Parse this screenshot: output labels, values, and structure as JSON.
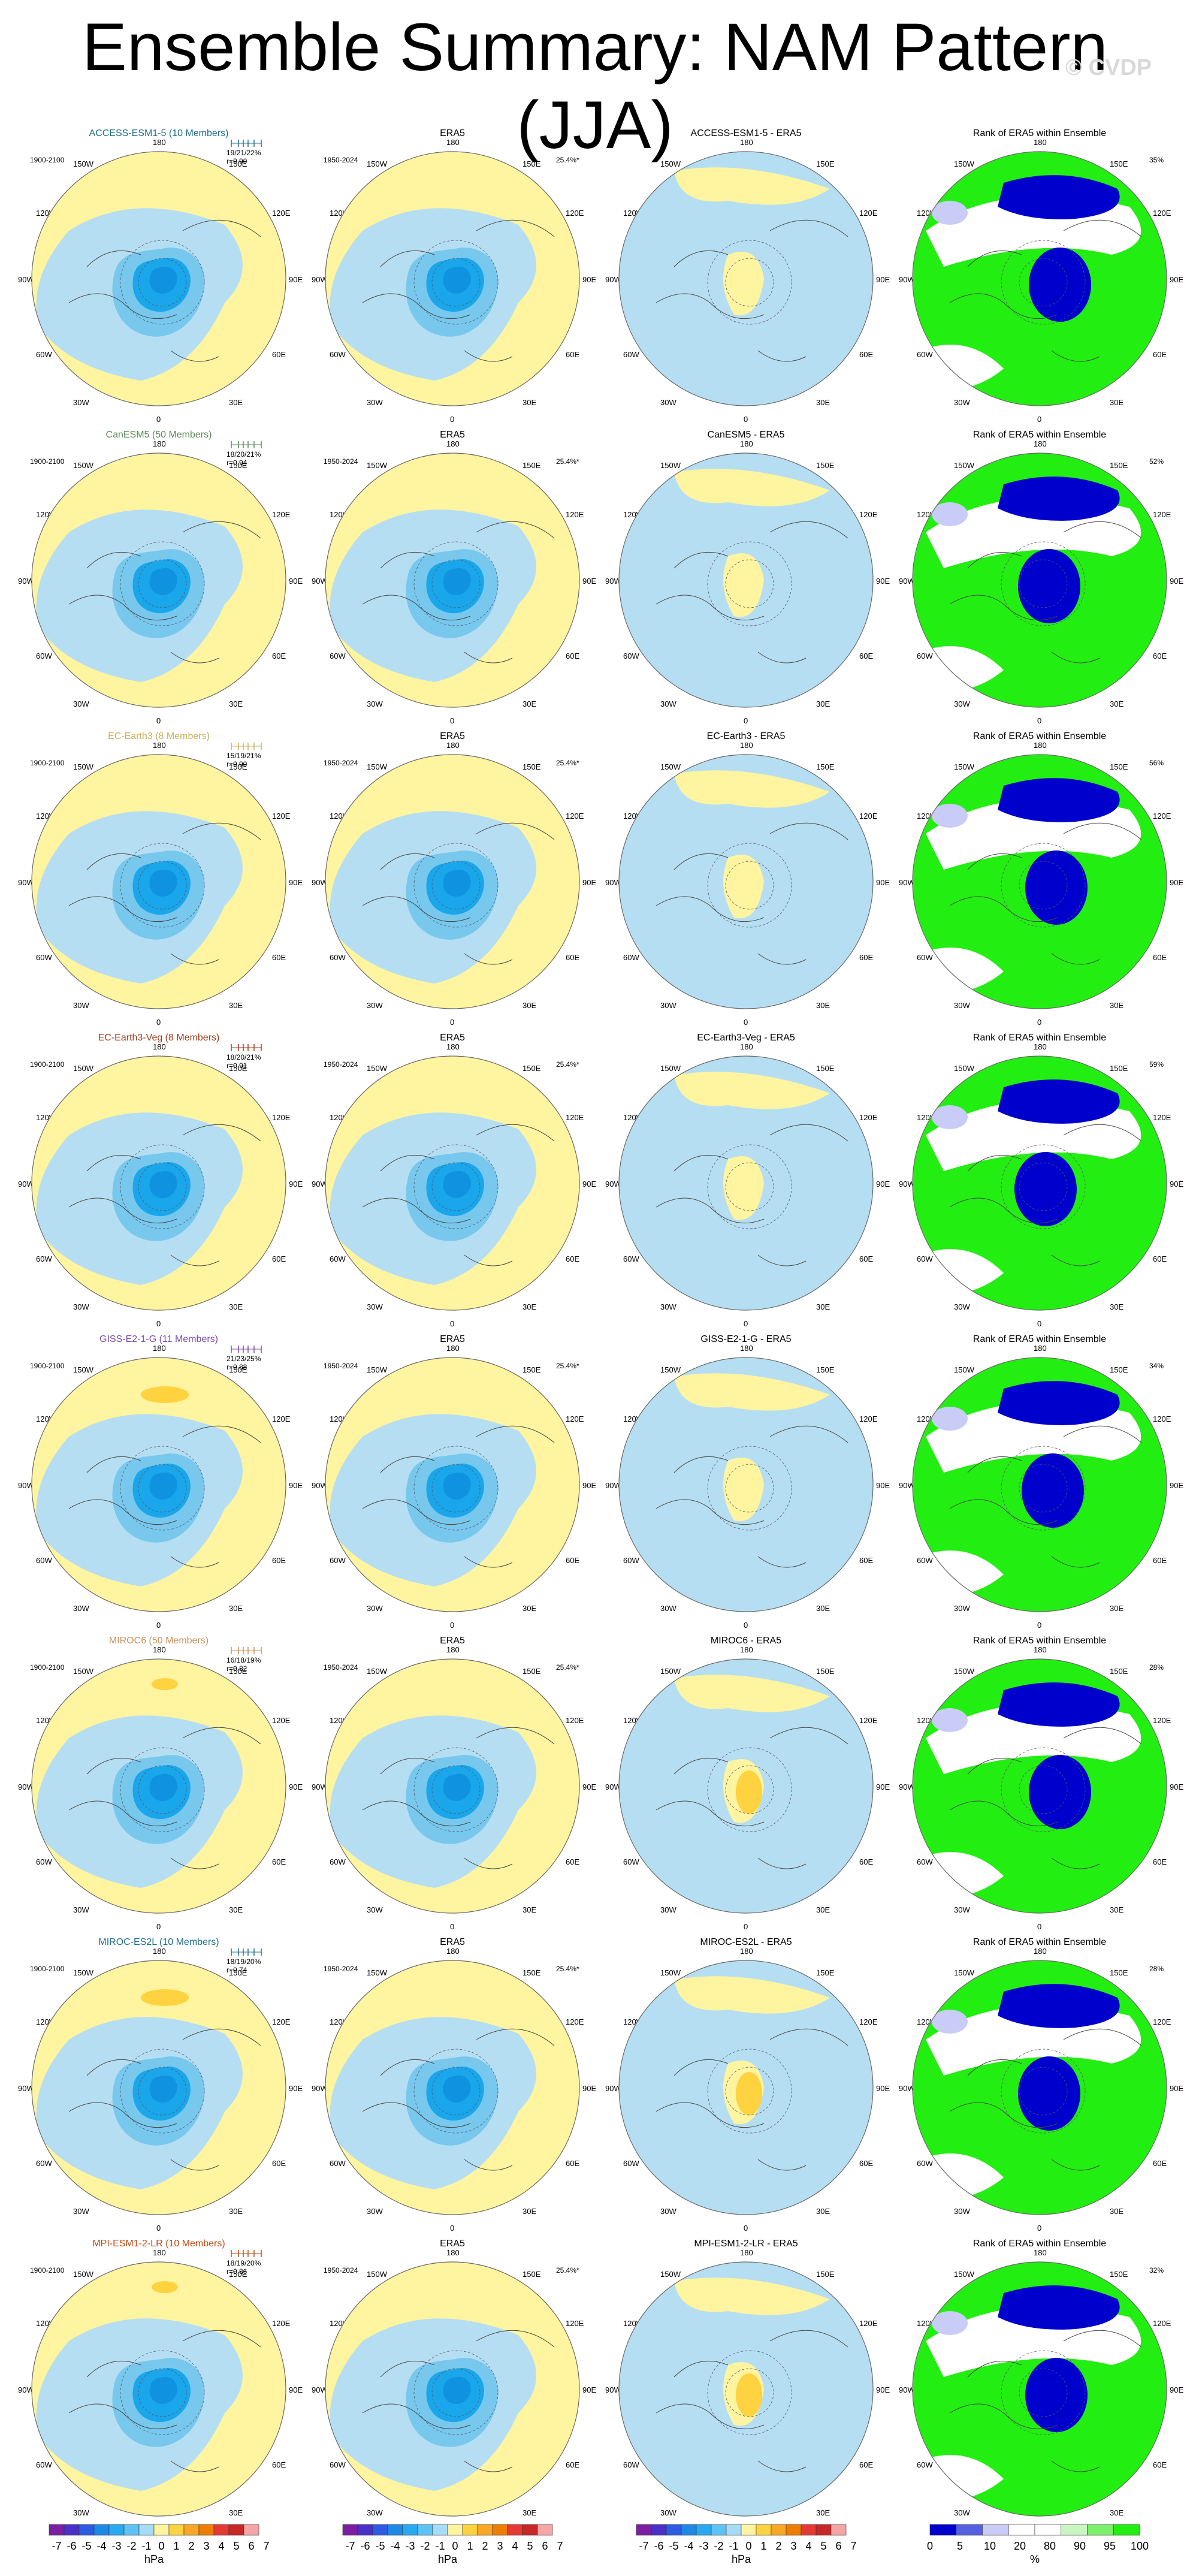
{
  "title": "Ensemble Summary: NAM Pattern (JJA)",
  "watermark": "© CVDP",
  "colors": {
    "pos_light": "#fff4a0",
    "neg_light": "#b6def2",
    "neg_mid": "#78c8ee",
    "neg_dark": "#1aa6ea",
    "pos_mid": "#ffd23f",
    "rank_green": "#22ee11",
    "rank_blue": "#0000cc",
    "rank_lightblue": "#c8ccf6",
    "title_access": "#1f6f8b",
    "title_canesm": "#5a8a5a",
    "title_ecearth": "#c8b15a",
    "title_ecveg": "#a23b1a",
    "title_giss": "#7a4ab0",
    "title_miroc6": "#c8905a",
    "title_mirocesl": "#1f6f8b",
    "title_mpi": "#c04a10"
  },
  "lon_labels": {
    "top": "180",
    "bottom": "0",
    "left": "90W",
    "right": "90E",
    "ul1": "150W",
    "ul2": "120W",
    "ur1": "150E",
    "ur2": "120E",
    "ll1": "60W",
    "ll2": "30W",
    "lr1": "60E",
    "lr2": "30E"
  },
  "rows": [
    {
      "model": "ACCESS-ESM1-5 (10 Members)",
      "color_key": "title_access",
      "period": "1900-2100",
      "stats": "19/21/22%",
      "corr": "r=0.90",
      "obs_title": "ERA5",
      "obs_period": "1950-2024",
      "obs_pct": "25.4%*",
      "diff_title": "ACCESS-ESM1-5 - ERA5",
      "rank_title": "Rank of ERA5 within Ensemble",
      "rank_pct": "35%"
    },
    {
      "model": "CanESM5 (50 Members)",
      "color_key": "title_canesm",
      "period": "1900-2100",
      "stats": "18/20/21%",
      "corr": "r=0.94",
      "obs_title": "ERA5",
      "obs_period": "1950-2024",
      "obs_pct": "25.4%*",
      "diff_title": "CanESM5 - ERA5",
      "rank_title": "Rank of ERA5 within Ensemble",
      "rank_pct": "52%"
    },
    {
      "model": "EC-Earth3 (8 Members)",
      "color_key": "title_ecearth",
      "period": "1900-2100",
      "stats": "15/19/21%",
      "corr": "r=0.90",
      "obs_title": "ERA5",
      "obs_period": "1950-2024",
      "obs_pct": "25.4%*",
      "diff_title": "EC-Earth3 - ERA5",
      "rank_title": "Rank of ERA5 within Ensemble",
      "rank_pct": "56%"
    },
    {
      "model": "EC-Earth3-Veg (8 Members)",
      "color_key": "title_ecveg",
      "period": "1900-2100",
      "stats": "18/20/21%",
      "corr": "r=0.91",
      "obs_title": "ERA5",
      "obs_period": "1950-2024",
      "obs_pct": "25.4%*",
      "diff_title": "EC-Earth3-Veg - ERA5",
      "rank_title": "Rank of ERA5 within Ensemble",
      "rank_pct": "59%"
    },
    {
      "model": "GISS-E2-1-G (11 Members)",
      "color_key": "title_giss",
      "period": "1900-2100",
      "stats": "21/23/25%",
      "corr": "r=0.88",
      "obs_title": "ERA5",
      "obs_period": "1950-2024",
      "obs_pct": "25.4%*",
      "diff_title": "GISS-E2-1-G - ERA5",
      "rank_title": "Rank of ERA5 within Ensemble",
      "rank_pct": "34%"
    },
    {
      "model": "MIROC6 (50 Members)",
      "color_key": "title_miroc6",
      "period": "1900-2100",
      "stats": "16/18/19%",
      "corr": "r=0.82",
      "obs_title": "ERA5",
      "obs_period": "1950-2024",
      "obs_pct": "25.4%*",
      "diff_title": "MIROC6 - ERA5",
      "rank_title": "Rank of ERA5 within Ensemble",
      "rank_pct": "28%"
    },
    {
      "model": "MIROC-ES2L (10 Members)",
      "color_key": "title_mirocesl",
      "period": "1900-2100",
      "stats": "18/19/20%",
      "corr": "r=0.74",
      "obs_title": "ERA5",
      "obs_period": "1950-2024",
      "obs_pct": "25.4%*",
      "diff_title": "MIROC-ES2L - ERA5",
      "rank_title": "Rank of ERA5 within Ensemble",
      "rank_pct": "28%"
    },
    {
      "model": "MPI-ESM1-2-LR (10 Members)",
      "color_key": "title_mpi",
      "period": "1900-2100",
      "stats": "18/19/20%",
      "corr": "r=0.86",
      "obs_title": "ERA5",
      "obs_period": "1950-2024",
      "obs_pct": "25.4%*",
      "diff_title": "MPI-ESM1-2-LR - ERA5",
      "rank_title": "Rank of ERA5 within Ensemble",
      "rank_pct": "32%"
    }
  ],
  "colorbars": {
    "hpa_ticks": [
      "-7",
      "-6",
      "-5",
      "-4",
      "-3",
      "-2",
      "-1",
      "0",
      "1",
      "2",
      "3",
      "4",
      "5",
      "6",
      "7"
    ],
    "hpa_unit": "hPa",
    "hpa_colors": [
      "#7b1fa2",
      "#4a2fc8",
      "#2d5be3",
      "#1e88e5",
      "#29a9f0",
      "#5ec3f2",
      "#a6dcf5",
      "#fff4a0",
      "#ffd23f",
      "#f9a825",
      "#ef7d00",
      "#e53935",
      "#c62828",
      "#f4a6a6"
    ],
    "pct_ticks": [
      "0",
      "5",
      "10",
      "20",
      "80",
      "90",
      "95",
      "100"
    ],
    "pct_unit": "%",
    "pct_colors": [
      "#0000cc",
      "#5560e0",
      "#c8ccf6",
      "#ffffff",
      "#ffffff",
      "#c9f5c3",
      "#7cf06a",
      "#22ee11"
    ]
  }
}
